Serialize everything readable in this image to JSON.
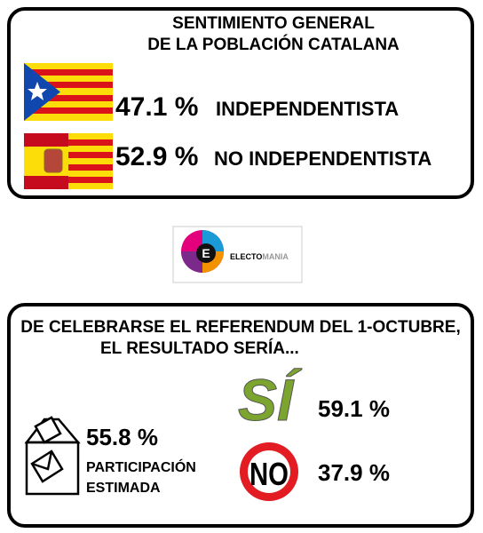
{
  "panel1": {
    "title": [
      "SENTIMIENTO GENERAL",
      "DE LA POBLACIÓN CATALANA"
    ],
    "rows": [
      {
        "value": "47.1 %",
        "label": "INDEPENDENTISTA"
      },
      {
        "value": "52.9 %",
        "label": "NO INDEPENDENTISTA"
      }
    ]
  },
  "logo": {
    "initial": "E",
    "text1": "ELECTO",
    "text2": "MANIA"
  },
  "panel2": {
    "title": [
      "DE CELEBRARSE EL REFERENDUM DEL 1-OCTUBRE,",
      "EL RESULTADO SERÍA..."
    ],
    "participation": {
      "value": "55.8 %",
      "label": [
        "PARTICIPACIÓN",
        "ESTIMADA"
      ]
    },
    "yes": {
      "word": "SÍ",
      "value": "59.1 %"
    },
    "no": {
      "word": "NO",
      "value": "37.9 %"
    }
  }
}
